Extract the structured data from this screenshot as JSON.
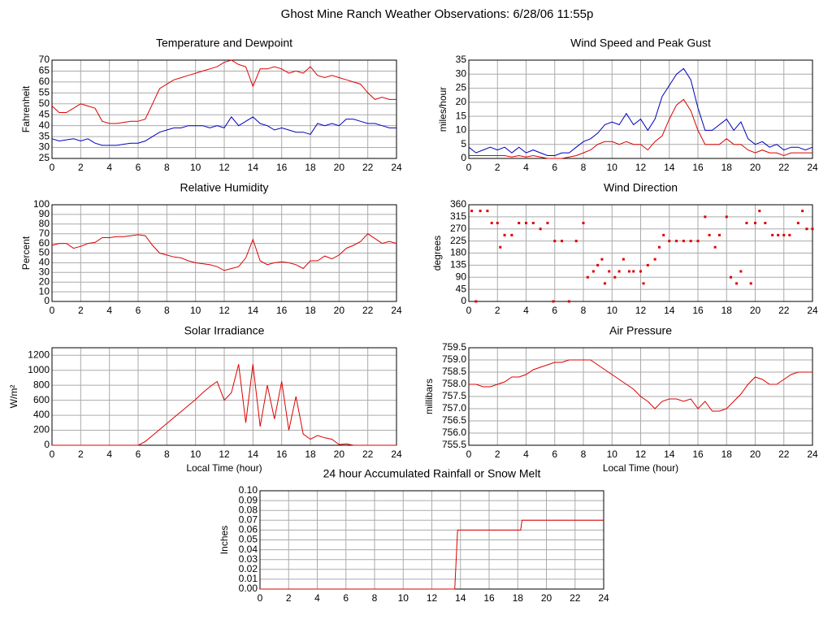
{
  "title": "Ghost Mine Ranch Weather Observations: 6/28/06 11:55p",
  "chart_data": [
    {
      "type": "line",
      "title": "Temperature and Dewpoint",
      "ylabel": "Fahrenheit",
      "x": [
        0,
        0.5,
        1,
        1.5,
        2,
        2.5,
        3,
        3.5,
        4,
        4.5,
        5,
        5.5,
        6,
        6.5,
        7,
        7.5,
        8,
        8.5,
        9,
        9.5,
        10,
        10.5,
        11,
        11.5,
        12,
        12.5,
        13,
        13.5,
        14,
        14.5,
        15,
        15.5,
        16,
        16.5,
        17,
        17.5,
        18,
        18.5,
        19,
        19.5,
        20,
        20.5,
        21,
        21.5,
        22,
        22.5,
        23,
        23.5,
        24
      ],
      "series": [
        {
          "color": "#dd0000",
          "values": [
            49,
            46,
            46,
            48,
            50,
            49,
            48,
            42,
            41,
            41,
            41.5,
            42,
            42,
            43,
            50,
            57,
            59,
            61,
            62,
            63,
            64,
            65,
            66,
            67,
            69,
            70,
            68,
            67,
            58,
            66,
            66,
            67,
            66,
            64,
            65,
            64,
            67,
            63,
            62,
            63,
            62,
            61,
            60,
            59,
            55,
            52,
            53,
            52,
            52
          ]
        },
        {
          "color": "#0000bb",
          "values": [
            34,
            33,
            33.5,
            34,
            33,
            34,
            32,
            31,
            31,
            31,
            31.5,
            32,
            32,
            33,
            35,
            37,
            38,
            39,
            39,
            40,
            40,
            40,
            39,
            40,
            39,
            44,
            40,
            42,
            44,
            41,
            40,
            38,
            39,
            38,
            37,
            37,
            36,
            41,
            40,
            41,
            40,
            43,
            43,
            42,
            41,
            41,
            40,
            39,
            39
          ]
        }
      ],
      "xlim": [
        0,
        24
      ],
      "xticks": [
        0,
        2,
        4,
        6,
        8,
        10,
        12,
        14,
        16,
        18,
        20,
        22,
        24
      ],
      "ylim": [
        25,
        70
      ],
      "yticks": [
        25,
        30,
        35,
        40,
        45,
        50,
        55,
        60,
        65,
        70
      ],
      "grid": true
    },
    {
      "type": "line",
      "title": "Wind Speed and Peak Gust",
      "ylabel": "miles/hour",
      "x": [
        0,
        0.5,
        1,
        1.5,
        2,
        2.5,
        3,
        3.5,
        4,
        4.5,
        5,
        5.5,
        6,
        6.5,
        7,
        7.5,
        8,
        8.5,
        9,
        9.5,
        10,
        10.5,
        11,
        11.5,
        12,
        12.5,
        13,
        13.5,
        14,
        14.5,
        15,
        15.5,
        16,
        16.5,
        17,
        17.5,
        18,
        18.5,
        19,
        19.5,
        20,
        20.5,
        21,
        21.5,
        22,
        22.5,
        23,
        23.5,
        24
      ],
      "series": [
        {
          "color": "#0000bb",
          "values": [
            4,
            2,
            3,
            4,
            3,
            4,
            2,
            4,
            2,
            3,
            2,
            1,
            1,
            2,
            2,
            4,
            6,
            7,
            9,
            12,
            13,
            12,
            16,
            12,
            14,
            10,
            14,
            22,
            26,
            30,
            32,
            28,
            18,
            10,
            10,
            12,
            14,
            10,
            13,
            7,
            5,
            6,
            4,
            5,
            3,
            4,
            4,
            3,
            4
          ]
        },
        {
          "color": "#dd0000",
          "values": [
            1,
            1,
            1,
            1,
            1,
            1,
            0.5,
            1,
            0.5,
            1,
            0.5,
            0,
            0,
            0,
            0.5,
            1,
            2,
            3,
            5,
            6,
            6,
            5,
            6,
            5,
            5,
            3,
            6,
            8,
            14,
            19,
            21,
            17,
            10,
            5,
            5,
            5,
            7,
            5,
            5,
            3,
            2,
            3,
            2,
            2,
            1,
            2,
            2,
            2,
            2
          ]
        }
      ],
      "xlim": [
        0,
        24
      ],
      "xticks": [
        0,
        2,
        4,
        6,
        8,
        10,
        12,
        14,
        16,
        18,
        20,
        22,
        24
      ],
      "ylim": [
        0,
        35
      ],
      "yticks": [
        0,
        5,
        10,
        15,
        20,
        25,
        30,
        35
      ],
      "grid": true
    },
    {
      "type": "line",
      "title": "Relative Humidity",
      "ylabel": "Percent",
      "x": [
        0,
        0.5,
        1,
        1.5,
        2,
        2.5,
        3,
        3.5,
        4,
        4.5,
        5,
        5.5,
        6,
        6.5,
        7,
        7.5,
        8,
        8.5,
        9,
        9.5,
        10,
        10.5,
        11,
        11.5,
        12,
        12.5,
        13,
        13.5,
        14,
        14.5,
        15,
        15.5,
        16,
        16.5,
        17,
        17.5,
        18,
        18.5,
        19,
        19.5,
        20,
        20.5,
        21,
        21.5,
        22,
        22.5,
        23,
        23.5,
        24
      ],
      "series": [
        {
          "color": "#dd0000",
          "values": [
            58,
            60,
            60,
            55,
            57,
            60,
            61,
            66,
            66,
            67,
            67,
            68,
            69,
            68,
            58,
            50,
            48,
            46,
            45,
            42,
            40,
            39,
            38,
            36,
            32,
            34,
            36,
            45,
            64,
            42,
            38,
            40,
            41,
            40,
            38,
            34,
            42,
            42,
            47,
            44,
            48,
            55,
            58,
            62,
            70,
            65,
            60,
            62,
            60
          ]
        }
      ],
      "xlim": [
        0,
        24
      ],
      "xticks": [
        0,
        2,
        4,
        6,
        8,
        10,
        12,
        14,
        16,
        18,
        20,
        22,
        24
      ],
      "ylim": [
        0,
        100
      ],
      "yticks": [
        0,
        10,
        20,
        30,
        40,
        50,
        60,
        70,
        80,
        90,
        100
      ],
      "grid": true
    },
    {
      "type": "scatter",
      "title": "Wind Direction",
      "ylabel": "degrees",
      "color": "#dd0000",
      "x": [
        0.2,
        0.5,
        0.8,
        1.3,
        1.6,
        2.0,
        2.2,
        2.5,
        3.0,
        3.5,
        4.0,
        4.5,
        5.0,
        5.5,
        5.9,
        6.0,
        6.5,
        7.0,
        7.5,
        8.0,
        8.3,
        8.7,
        9.0,
        9.3,
        9.5,
        9.8,
        10.2,
        10.5,
        10.8,
        11.2,
        11.5,
        12.0,
        12.2,
        12.5,
        13.0,
        13.3,
        13.6,
        14.0,
        14.5,
        15.0,
        15.5,
        16.0,
        16.5,
        16.8,
        17.2,
        17.5,
        18.0,
        18.3,
        18.7,
        19.0,
        19.4,
        19.7,
        20.0,
        20.3,
        20.7,
        21.2,
        21.6,
        22.0,
        22.4,
        23.0,
        23.3,
        23.6,
        24.0
      ],
      "values": [
        337,
        0,
        337,
        337,
        292,
        292,
        202,
        247,
        247,
        292,
        292,
        292,
        270,
        292,
        0,
        225,
        225,
        0,
        225,
        292,
        90,
        112,
        135,
        157,
        67,
        112,
        90,
        112,
        157,
        112,
        112,
        112,
        67,
        135,
        157,
        202,
        247,
        225,
        225,
        225,
        225,
        225,
        315,
        247,
        202,
        247,
        315,
        90,
        67,
        112,
        292,
        67,
        292,
        337,
        292,
        247,
        247,
        247,
        247,
        292,
        337,
        270,
        270
      ],
      "xlim": [
        0,
        24
      ],
      "xticks": [
        0,
        2,
        4,
        6,
        8,
        10,
        12,
        14,
        16,
        18,
        20,
        22,
        24
      ],
      "ylim": [
        0,
        360
      ],
      "yticks": [
        0,
        45,
        90,
        135,
        180,
        225,
        270,
        315,
        360
      ],
      "grid": true
    },
    {
      "type": "line",
      "title": "Solar Irradiance",
      "ylabel": "W/m²",
      "xlabel": "Local Time (hour)",
      "x": [
        0,
        0.5,
        1,
        1.5,
        2,
        2.5,
        3,
        3.5,
        4,
        4.5,
        5,
        5.5,
        6,
        6.5,
        7,
        7.5,
        8,
        8.5,
        9,
        9.5,
        10,
        10.5,
        11,
        11.5,
        12,
        12.5,
        13,
        13.5,
        14,
        14.5,
        15,
        15.5,
        16,
        16.5,
        17,
        17.5,
        18,
        18.5,
        19,
        19.5,
        20,
        20.5,
        21,
        21.5,
        22,
        22.5,
        23,
        23.5,
        24
      ],
      "series": [
        {
          "color": "#dd0000",
          "values": [
            0,
            0,
            0,
            0,
            0,
            0,
            0,
            0,
            0,
            0,
            0,
            0,
            0,
            50,
            130,
            210,
            290,
            370,
            450,
            530,
            610,
            700,
            780,
            850,
            600,
            700,
            1080,
            300,
            1080,
            250,
            800,
            350,
            850,
            200,
            650,
            150,
            80,
            130,
            100,
            80,
            10,
            20,
            0,
            0,
            0,
            0,
            0,
            0,
            0
          ]
        }
      ],
      "xlim": [
        0,
        24
      ],
      "xticks": [
        0,
        2,
        4,
        6,
        8,
        10,
        12,
        14,
        16,
        18,
        20,
        22,
        24
      ],
      "ylim": [
        0,
        1300
      ],
      "yticks": [
        0,
        200,
        400,
        600,
        800,
        1000,
        1200
      ],
      "grid": true
    },
    {
      "type": "line",
      "title": "Air Pressure",
      "ylabel": "millibars",
      "xlabel": "Local Time (hour)",
      "x": [
        0,
        0.5,
        1,
        1.5,
        2,
        2.5,
        3,
        3.5,
        4,
        4.5,
        5,
        5.5,
        6,
        6.5,
        7,
        7.5,
        8,
        8.5,
        9,
        9.5,
        10,
        10.5,
        11,
        11.5,
        12,
        12.5,
        13,
        13.5,
        14,
        14.5,
        15,
        15.5,
        16,
        16.5,
        17,
        17.5,
        18,
        18.5,
        19,
        19.5,
        20,
        20.5,
        21,
        21.5,
        22,
        22.5,
        23,
        23.5,
        24
      ],
      "series": [
        {
          "color": "#dd0000",
          "values": [
            758,
            758,
            757.9,
            757.9,
            758,
            758.1,
            758.3,
            758.3,
            758.4,
            758.6,
            758.7,
            758.8,
            758.9,
            758.9,
            759,
            759,
            759,
            759,
            758.8,
            758.6,
            758.4,
            758.2,
            758,
            757.8,
            757.5,
            757.3,
            757,
            757.3,
            757.4,
            757.4,
            757.3,
            757.4,
            757,
            757.3,
            756.9,
            756.9,
            757,
            757.3,
            757.6,
            758,
            758.3,
            758.2,
            758,
            758,
            758.2,
            758.4,
            758.5,
            758.5,
            758.5
          ]
        }
      ],
      "xlim": [
        0,
        24
      ],
      "xticks": [
        0,
        2,
        4,
        6,
        8,
        10,
        12,
        14,
        16,
        18,
        20,
        22,
        24
      ],
      "ylim": [
        755.5,
        759.5
      ],
      "yticks": [
        755.5,
        {
          "value": 756,
          "label": "756.0"
        },
        756.5,
        {
          "value": 757,
          "label": "757.0"
        },
        757.5,
        {
          "value": 758,
          "label": "758.0"
        },
        758.5,
        {
          "value": 759,
          "label": "759.0"
        },
        759.5
      ],
      "grid": true
    },
    {
      "type": "line",
      "title": "24 hour Accumulated Rainfall or Snow Melt",
      "ylabel": "Inches",
      "x": [
        0,
        13.6,
        13.8,
        18.2,
        18.3,
        24
      ],
      "series": [
        {
          "color": "#dd0000",
          "values": [
            0,
            0,
            0.06,
            0.06,
            0.07,
            0.07
          ]
        }
      ],
      "xlim": [
        0,
        24
      ],
      "xticks": [
        0,
        2,
        4,
        6,
        8,
        10,
        12,
        14,
        16,
        18,
        20,
        22,
        24
      ],
      "ylim": [
        0,
        0.1
      ],
      "yticks": [
        {
          "value": 0,
          "label": "0.00"
        },
        0.01,
        0.02,
        0.03,
        0.04,
        0.05,
        0.06,
        0.07,
        0.08,
        0.09,
        {
          "value": 0.1,
          "label": "0.10"
        }
      ],
      "grid": true
    }
  ]
}
